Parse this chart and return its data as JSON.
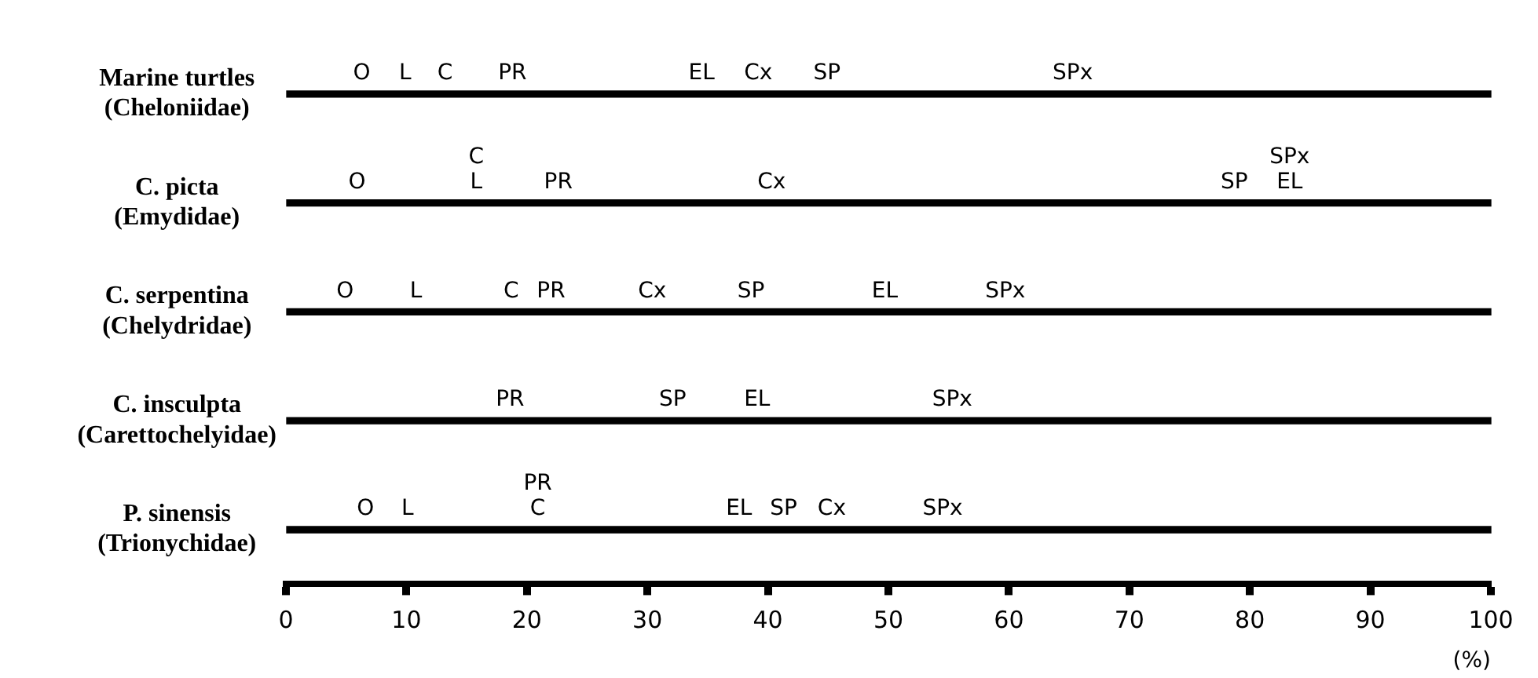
{
  "chart_data": {
    "type": "bar",
    "orientation": "horizontal",
    "categories": [
      "Marine turtles\n(Cheloniidae)",
      "C. picta\n(Emydidae)",
      "C. serpentina\n(Chelydridae)",
      "C. insculpta\n(Carettochelyidae)",
      "P. sinensis\n(Trionychidae)"
    ],
    "values": [
      100,
      100,
      100,
      100,
      100
    ],
    "color": "#000000",
    "xlim": [
      0,
      100
    ],
    "xticks": [
      0,
      10,
      20,
      30,
      40,
      50,
      60,
      70,
      80,
      90,
      100
    ],
    "xlabel": "(%)",
    "grid": false,
    "legend": false,
    "annotations": [
      {
        "text": "O",
        "x": 6.3,
        "y": "Marine turtles\n(Cheloniidae)"
      },
      {
        "text": "L",
        "x": 9.9,
        "y": "Marine turtles\n(Cheloniidae)"
      },
      {
        "text": "C",
        "x": 13.2,
        "y": "Marine turtles\n(Cheloniidae)"
      },
      {
        "text": "PR",
        "x": 18.8,
        "y": "Marine turtles\n(Cheloniidae)"
      },
      {
        "text": "EL",
        "x": 34.5,
        "y": "Marine turtles\n(Cheloniidae)"
      },
      {
        "text": "Cx",
        "x": 39.2,
        "y": "Marine turtles\n(Cheloniidae)"
      },
      {
        "text": "SP",
        "x": 44.9,
        "y": "Marine turtles\n(Cheloniidae)"
      },
      {
        "text": "SPx",
        "x": 65.3,
        "y": "Marine turtles\n(Cheloniidae)"
      },
      {
        "text": "O",
        "x": 5.9,
        "y": "C. picta\n(Emydidae)"
      },
      {
        "text": "L",
        "x": 15.8,
        "y": "C. picta\n(Emydidae)"
      },
      {
        "text": "C",
        "x": 15.8,
        "y": "C. picta\n(Emydidae)"
      },
      {
        "text": "PR",
        "x": 22.6,
        "y": "C. picta\n(Emydidae)"
      },
      {
        "text": "Cx",
        "x": 40.3,
        "y": "C. picta\n(Emydidae)"
      },
      {
        "text": "SP",
        "x": 78.7,
        "y": "C. picta\n(Emydidae)"
      },
      {
        "text": "EL",
        "x": 83.3,
        "y": "C. picta\n(Emydidae)"
      },
      {
        "text": "SPx",
        "x": 83.3,
        "y": "C. picta\n(Emydidae)"
      },
      {
        "text": "O",
        "x": 4.9,
        "y": "C. serpentina\n(Chelydridae)"
      },
      {
        "text": "L",
        "x": 10.8,
        "y": "C. serpentina\n(Chelydridae)"
      },
      {
        "text": "C",
        "x": 18.7,
        "y": "C. serpentina\n(Chelydridae)"
      },
      {
        "text": "PR",
        "x": 22,
        "y": "C. serpentina\n(Chelydridae)"
      },
      {
        "text": "Cx",
        "x": 30.4,
        "y": "C. serpentina\n(Chelydridae)"
      },
      {
        "text": "SP",
        "x": 38.6,
        "y": "C. serpentina\n(Chelydridae)"
      },
      {
        "text": "EL",
        "x": 49.7,
        "y": "C. serpentina\n(Chelydridae)"
      },
      {
        "text": "SPx",
        "x": 59.7,
        "y": "C. serpentina\n(Chelydridae)"
      },
      {
        "text": "PR",
        "x": 18.6,
        "y": "C. insculpta\n(Carettochelyidae)"
      },
      {
        "text": "SP",
        "x": 32.1,
        "y": "C. insculpta\n(Carettochelyidae)"
      },
      {
        "text": "EL",
        "x": 39.1,
        "y": "C. insculpta\n(Carettochelyidae)"
      },
      {
        "text": "SPx",
        "x": 55.3,
        "y": "C. insculpta\n(Carettochelyidae)"
      },
      {
        "text": "O",
        "x": 6.6,
        "y": "P. sinensis\n(Trionychidae)"
      },
      {
        "text": "L",
        "x": 10.1,
        "y": "P. sinensis\n(Trionychidae)"
      },
      {
        "text": "C",
        "x": 20.9,
        "y": "P. sinensis\n(Trionychidae)"
      },
      {
        "text": "PR",
        "x": 20.9,
        "y": "P. sinensis\n(Trionychidae)"
      },
      {
        "text": "EL",
        "x": 37.6,
        "y": "P. sinensis\n(Trionychidae)"
      },
      {
        "text": "SP",
        "x": 41.3,
        "y": "P. sinensis\n(Trionychidae)"
      },
      {
        "text": "Cx",
        "x": 45.3,
        "y": "P. sinensis\n(Trionychidae)"
      },
      {
        "text": "SPx",
        "x": 54.5,
        "y": "P. sinensis\n(Trionychidae)"
      }
    ]
  }
}
